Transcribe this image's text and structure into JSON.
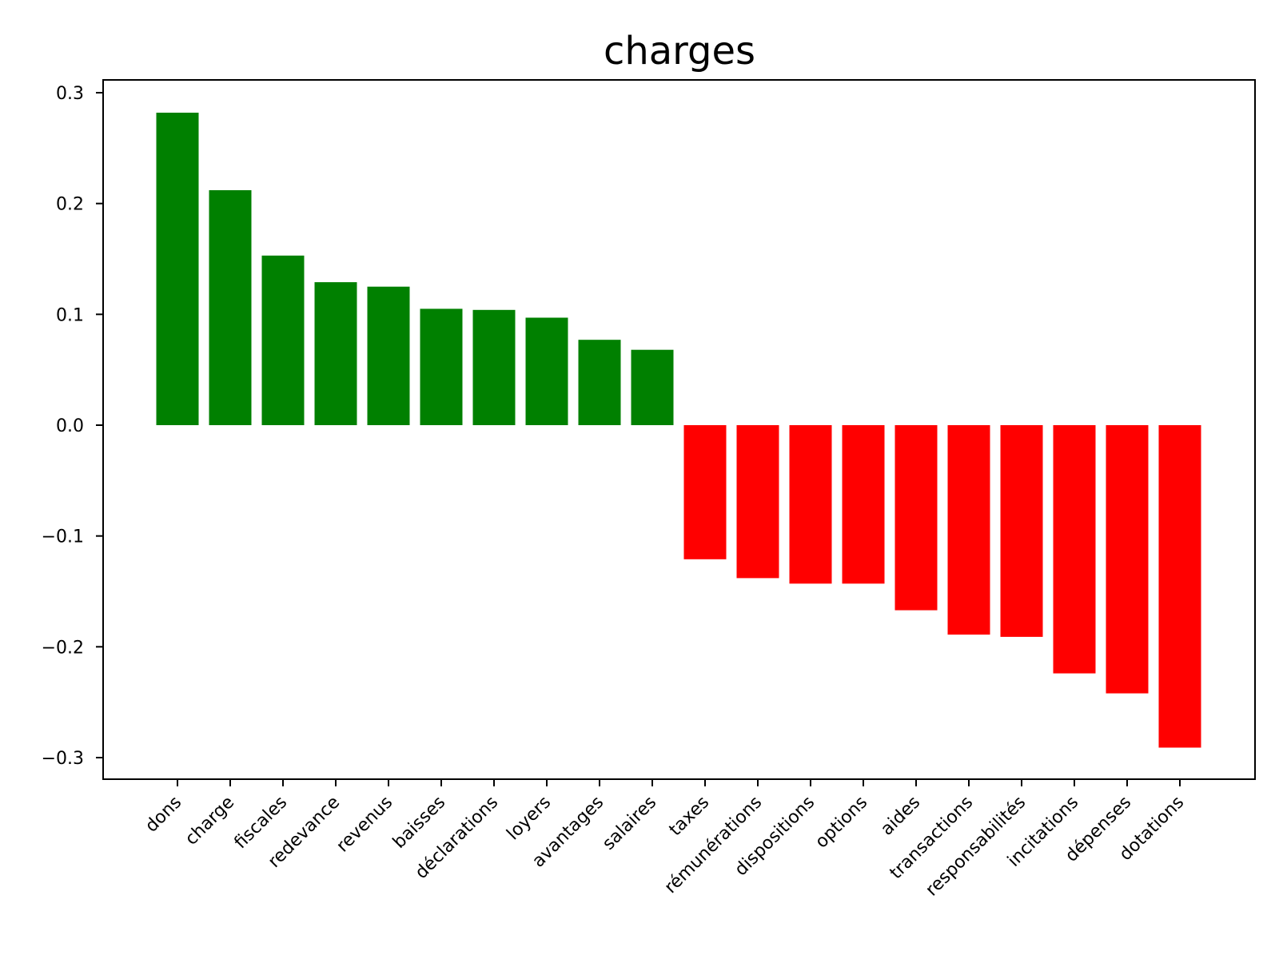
{
  "chart_data": {
    "type": "bar",
    "title": "charges",
    "xlabel": "",
    "ylabel": "",
    "ylim": [
      -0.32,
      0.31
    ],
    "yticks": [
      0.3,
      0.2,
      0.1,
      0.0,
      -0.1,
      -0.2,
      -0.3
    ],
    "ytick_labels": [
      "0.3",
      "0.2",
      "0.1",
      "0.0",
      "−0.1",
      "−0.2",
      "−0.3"
    ],
    "grid": false,
    "legend": "none",
    "positive_color": "#008000",
    "negative_color": "#ff0000",
    "categories": [
      "dons",
      "charge",
      "fiscales",
      "redevance",
      "revenus",
      "baisses",
      "déclarations",
      "loyers",
      "avantages",
      "salaires",
      "taxes",
      "rémunérations",
      "dispositions",
      "options",
      "aides",
      "transactions",
      "responsabilités",
      "incitations",
      "dépenses",
      "dotations"
    ],
    "values": [
      0.282,
      0.212,
      0.153,
      0.129,
      0.125,
      0.105,
      0.104,
      0.097,
      0.077,
      0.068,
      -0.121,
      -0.138,
      -0.143,
      -0.143,
      -0.167,
      -0.189,
      -0.191,
      -0.224,
      -0.242,
      -0.291
    ]
  }
}
